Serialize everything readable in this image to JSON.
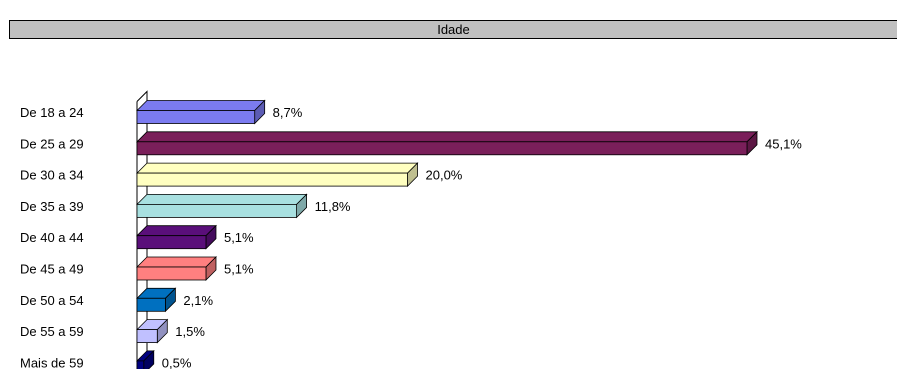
{
  "chart_data": {
    "type": "bar",
    "orientation": "horizontal",
    "three_d": true,
    "title": "Idade",
    "categories": [
      "De 18 a 24",
      "De 25 a 29",
      "De 30 a 34",
      "De 35 a 39",
      "De 40 a 44",
      "De 45 a 49",
      "De 50 a 54",
      "De 55 a 59",
      "Mais de 59"
    ],
    "values": [
      8.7,
      45.1,
      20.0,
      11.8,
      5.1,
      5.1,
      2.1,
      1.5,
      0.5
    ],
    "value_labels": [
      "8,7%",
      "45,1%",
      "20,0%",
      "11,8%",
      "5,1%",
      "5,1%",
      "2,1%",
      "1,5%",
      "0,5%"
    ],
    "colors": [
      "#7b7bf0",
      "#7a1f5a",
      "#ffffc0",
      "#a8e0e0",
      "#5a0f7a",
      "#ff8080",
      "#0070c0",
      "#c0c0ff",
      "#000080"
    ],
    "unit": "%",
    "xlim": [
      0,
      45.1
    ],
    "grid": false,
    "legend": "none"
  }
}
